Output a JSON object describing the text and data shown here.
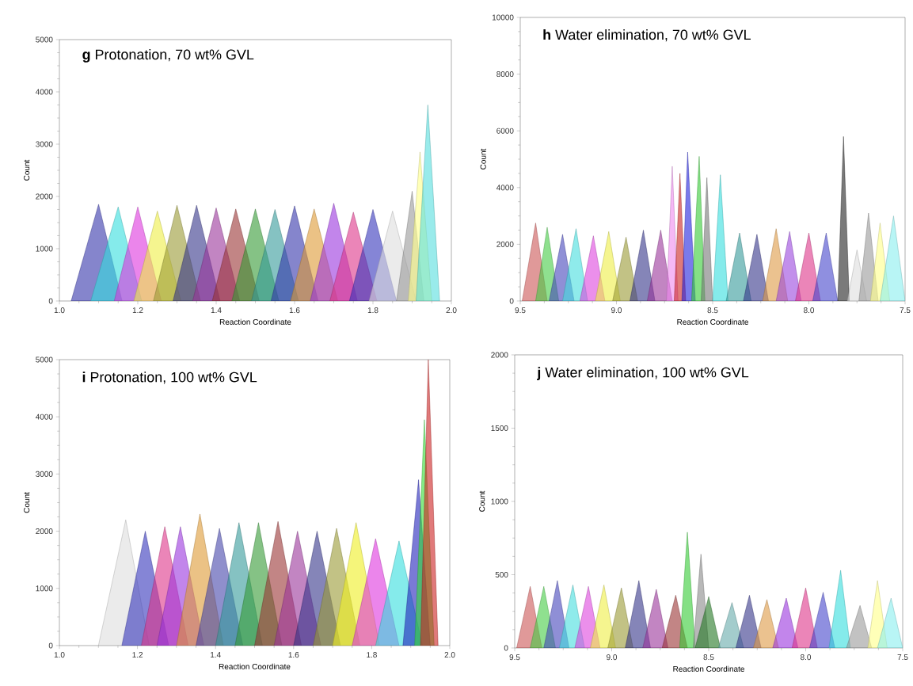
{
  "chart_data": [
    {
      "type": "area",
      "title": "**g** Protonation, 70 wt% GVL",
      "xlabel": "Reaction Coordinate",
      "ylabel": "Count",
      "xlim": [
        1.0,
        2.0
      ],
      "ylim": [
        0,
        5000
      ],
      "xticks": [
        {
          "value": 1.0,
          "label": "1.0"
        },
        {
          "value": 1.2,
          "label": "1.2"
        },
        {
          "value": 1.4,
          "label": "1.4"
        },
        {
          "value": 1.6,
          "label": "1.6"
        },
        {
          "value": 1.8,
          "label": "1.8"
        },
        {
          "value": 2.0,
          "label": "2.0"
        }
      ],
      "yticks": [
        0,
        1000,
        2000,
        3000,
        4000,
        5000
      ],
      "series": [
        {
          "color": "#3333aa",
          "x": [
            1.03,
            1.1,
            1.16
          ],
          "values": [
            0,
            1850,
            0
          ]
        },
        {
          "color": "#33dddd",
          "x": [
            1.08,
            1.15,
            1.21
          ],
          "values": [
            0,
            1800,
            0
          ]
        },
        {
          "color": "#dd33dd",
          "x": [
            1.14,
            1.2,
            1.26
          ],
          "values": [
            0,
            1800,
            0
          ]
        },
        {
          "color": "#eeee44",
          "x": [
            1.19,
            1.25,
            1.31
          ],
          "values": [
            0,
            1720,
            0
          ]
        },
        {
          "color": "#999933",
          "x": [
            1.24,
            1.3,
            1.36
          ],
          "values": [
            0,
            1830,
            0
          ]
        },
        {
          "color": "#333388",
          "x": [
            1.29,
            1.35,
            1.41
          ],
          "values": [
            0,
            1830,
            0
          ]
        },
        {
          "color": "#993399",
          "x": [
            1.34,
            1.4,
            1.46
          ],
          "values": [
            0,
            1780,
            0
          ]
        },
        {
          "color": "#993333",
          "x": [
            1.39,
            1.45,
            1.51
          ],
          "values": [
            0,
            1760,
            0
          ]
        },
        {
          "color": "#339933",
          "x": [
            1.44,
            1.5,
            1.56
          ],
          "values": [
            0,
            1760,
            0
          ]
        },
        {
          "color": "#339999",
          "x": [
            1.49,
            1.55,
            1.61
          ],
          "values": [
            0,
            1750,
            0
          ]
        },
        {
          "color": "#3333aa",
          "x": [
            1.54,
            1.6,
            1.66
          ],
          "values": [
            0,
            1820,
            0
          ]
        },
        {
          "color": "#dd9933",
          "x": [
            1.59,
            1.65,
            1.71
          ],
          "values": [
            0,
            1760,
            0
          ]
        },
        {
          "color": "#9933dd",
          "x": [
            1.64,
            1.7,
            1.76
          ],
          "values": [
            0,
            1870,
            0
          ]
        },
        {
          "color": "#dd3388",
          "x": [
            1.69,
            1.75,
            1.81
          ],
          "values": [
            0,
            1700,
            0
          ]
        },
        {
          "color": "#3333bb",
          "x": [
            1.74,
            1.8,
            1.86
          ],
          "values": [
            0,
            1750,
            0
          ]
        },
        {
          "color": "#dddddd",
          "x": [
            1.79,
            1.85,
            1.91
          ],
          "values": [
            0,
            1720,
            0
          ]
        },
        {
          "color": "#999999",
          "x": [
            1.86,
            1.9,
            1.93
          ],
          "values": [
            0,
            2100,
            0
          ]
        },
        {
          "color": "#ffff88",
          "x": [
            1.89,
            1.92,
            1.95
          ],
          "values": [
            0,
            2850,
            0
          ]
        },
        {
          "color": "#55dddd",
          "x": [
            1.91,
            1.94,
            1.97
          ],
          "values": [
            0,
            3750,
            0
          ]
        }
      ]
    },
    {
      "type": "area",
      "title": "**h** Water elimination, 70 wt% GVL",
      "xlabel": "Reaction Coordinate",
      "ylabel": "Count",
      "xlim": [
        9.5,
        7.5
      ],
      "ylim": [
        0,
        10000
      ],
      "xticks": [
        {
          "value": 9.5,
          "label": "9.5"
        },
        {
          "value": 9.0,
          "label": "9.0"
        },
        {
          "value": 8.5,
          "label": "8.5"
        },
        {
          "value": 8.0,
          "label": "8.0"
        },
        {
          "value": 7.5,
          "label": "7.5"
        }
      ],
      "yticks": [
        0,
        2000,
        4000,
        6000,
        8000,
        10000
      ],
      "series": [
        {
          "color": "#cc5555",
          "x": [
            9.49,
            9.42,
            9.36
          ],
          "values": [
            0,
            2750,
            0
          ]
        },
        {
          "color": "#44cc44",
          "x": [
            9.42,
            9.36,
            9.3
          ],
          "values": [
            0,
            2600,
            0
          ]
        },
        {
          "color": "#4444bb",
          "x": [
            9.35,
            9.28,
            9.22
          ],
          "values": [
            0,
            2350,
            0
          ]
        },
        {
          "color": "#44dddd",
          "x": [
            9.28,
            9.21,
            9.15
          ],
          "values": [
            0,
            2550,
            0
          ]
        },
        {
          "color": "#dd44dd",
          "x": [
            9.19,
            9.12,
            9.06
          ],
          "values": [
            0,
            2300,
            0
          ]
        },
        {
          "color": "#eeee44",
          "x": [
            9.11,
            9.04,
            8.98
          ],
          "values": [
            0,
            2450,
            0
          ]
        },
        {
          "color": "#999933",
          "x": [
            9.02,
            8.95,
            8.89
          ],
          "values": [
            0,
            2250,
            0
          ]
        },
        {
          "color": "#333388",
          "x": [
            8.93,
            8.86,
            8.8
          ],
          "values": [
            0,
            2500,
            0
          ]
        },
        {
          "color": "#993399",
          "x": [
            8.84,
            8.77,
            8.71
          ],
          "values": [
            0,
            2500,
            0
          ]
        },
        {
          "color": "#ee88ee",
          "x": [
            8.74,
            8.71,
            8.68
          ],
          "values": [
            0,
            4750,
            0
          ]
        },
        {
          "color": "#cc2222",
          "x": [
            8.7,
            8.67,
            8.64
          ],
          "values": [
            0,
            4500,
            0
          ]
        },
        {
          "color": "#2222dd",
          "x": [
            8.66,
            8.63,
            8.59
          ],
          "values": [
            0,
            5250,
            0
          ]
        },
        {
          "color": "#33cc33",
          "x": [
            8.61,
            8.57,
            8.54
          ],
          "values": [
            0,
            5100,
            0
          ]
        },
        {
          "color": "#777777",
          "x": [
            8.56,
            8.53,
            8.5
          ],
          "values": [
            0,
            4350,
            0
          ]
        },
        {
          "color": "#33dddd",
          "x": [
            8.5,
            8.46,
            8.42
          ],
          "values": [
            0,
            4450,
            0
          ]
        },
        {
          "color": "#339999",
          "x": [
            8.43,
            8.36,
            8.3
          ],
          "values": [
            0,
            2400,
            0
          ]
        },
        {
          "color": "#333388",
          "x": [
            8.34,
            8.27,
            8.21
          ],
          "values": [
            0,
            2350,
            0
          ]
        },
        {
          "color": "#dd9944",
          "x": [
            8.24,
            8.17,
            8.11
          ],
          "values": [
            0,
            2550,
            0
          ]
        },
        {
          "color": "#9944dd",
          "x": [
            8.17,
            8.1,
            8.04
          ],
          "values": [
            0,
            2450,
            0
          ]
        },
        {
          "color": "#dd3388",
          "x": [
            8.07,
            8.0,
            7.94
          ],
          "values": [
            0,
            2400,
            0
          ]
        },
        {
          "color": "#4444cc",
          "x": [
            7.98,
            7.91,
            7.85
          ],
          "values": [
            0,
            2400,
            0
          ]
        },
        {
          "color": "#222222",
          "x": [
            7.85,
            7.82,
            7.79
          ],
          "values": [
            0,
            5800,
            0
          ]
        },
        {
          "color": "#dddddd",
          "x": [
            7.8,
            7.75,
            7.7
          ],
          "values": [
            0,
            1800,
            0
          ]
        },
        {
          "color": "#999999",
          "x": [
            7.74,
            7.69,
            7.64
          ],
          "values": [
            0,
            3100,
            0
          ]
        },
        {
          "color": "#ffff88",
          "x": [
            7.68,
            7.63,
            7.58
          ],
          "values": [
            0,
            2750,
            0
          ]
        },
        {
          "color": "#88eeee",
          "x": [
            7.63,
            7.56,
            7.5
          ],
          "values": [
            0,
            3000,
            0
          ]
        }
      ]
    },
    {
      "type": "area",
      "title": "**i** Protonation, 100 wt% GVL",
      "xlabel": "Reaction Coordinate",
      "ylabel": "Count",
      "xlim": [
        1.0,
        2.0
      ],
      "ylim": [
        0,
        5000
      ],
      "xticks": [
        {
          "value": 1.0,
          "label": "1.0"
        },
        {
          "value": 1.2,
          "label": "1.2"
        },
        {
          "value": 1.4,
          "label": "1.4"
        },
        {
          "value": 1.6,
          "label": "1.6"
        },
        {
          "value": 1.8,
          "label": "1.8"
        },
        {
          "value": 2.0,
          "label": "2.0"
        }
      ],
      "yticks": [
        0,
        1000,
        2000,
        3000,
        4000,
        5000
      ],
      "series": [
        {
          "color": "#dddddd",
          "x": [
            1.1,
            1.17,
            1.23
          ],
          "values": [
            0,
            2200,
            0
          ]
        },
        {
          "color": "#3333bb",
          "x": [
            1.16,
            1.22,
            1.28
          ],
          "values": [
            0,
            2000,
            0
          ]
        },
        {
          "color": "#dd3388",
          "x": [
            1.21,
            1.27,
            1.33
          ],
          "values": [
            0,
            2080,
            0
          ]
        },
        {
          "color": "#9933dd",
          "x": [
            1.25,
            1.31,
            1.37
          ],
          "values": [
            0,
            2080,
            0
          ]
        },
        {
          "color": "#dd9933",
          "x": [
            1.3,
            1.36,
            1.42
          ],
          "values": [
            0,
            2300,
            0
          ]
        },
        {
          "color": "#4444aa",
          "x": [
            1.35,
            1.41,
            1.47
          ],
          "values": [
            0,
            2050,
            0
          ]
        },
        {
          "color": "#339999",
          "x": [
            1.4,
            1.46,
            1.52
          ],
          "values": [
            0,
            2150,
            0
          ]
        },
        {
          "color": "#339933",
          "x": [
            1.45,
            1.51,
            1.57
          ],
          "values": [
            0,
            2150,
            0
          ]
        },
        {
          "color": "#993333",
          "x": [
            1.5,
            1.56,
            1.62
          ],
          "values": [
            0,
            2170,
            0
          ]
        },
        {
          "color": "#993399",
          "x": [
            1.55,
            1.61,
            1.67
          ],
          "values": [
            0,
            2000,
            0
          ]
        },
        {
          "color": "#333388",
          "x": [
            1.6,
            1.66,
            1.72
          ],
          "values": [
            0,
            2000,
            0
          ]
        },
        {
          "color": "#999933",
          "x": [
            1.65,
            1.71,
            1.77
          ],
          "values": [
            0,
            2050,
            0
          ]
        },
        {
          "color": "#eeee22",
          "x": [
            1.7,
            1.76,
            1.82
          ],
          "values": [
            0,
            2150,
            0
          ]
        },
        {
          "color": "#dd33dd",
          "x": [
            1.75,
            1.81,
            1.87
          ],
          "values": [
            0,
            1870,
            0
          ]
        },
        {
          "color": "#33dddd",
          "x": [
            1.81,
            1.87,
            1.93
          ],
          "values": [
            0,
            1830,
            0
          ]
        },
        {
          "color": "#2222bb",
          "x": [
            1.88,
            1.92,
            1.95
          ],
          "values": [
            0,
            2900,
            0
          ]
        },
        {
          "color": "#33dd33",
          "x": [
            1.91,
            1.935,
            1.96
          ],
          "values": [
            0,
            3950,
            0
          ]
        },
        {
          "color": "#cc2222",
          "x": [
            1.925,
            1.945,
            1.97
          ],
          "values": [
            0,
            5000,
            0
          ]
        }
      ]
    },
    {
      "type": "area",
      "title": "**j** Water elimination, 100 wt% GVL",
      "xlabel": "Reaction Coordinate",
      "ylabel": "Count",
      "xlim": [
        9.5,
        7.5
      ],
      "ylim": [
        0,
        2000
      ],
      "xticks": [
        {
          "value": 9.5,
          "label": "9.5"
        },
        {
          "value": 9.0,
          "label": "9.0"
        },
        {
          "value": 8.5,
          "label": "8.5"
        },
        {
          "value": 8.0,
          "label": "8.0"
        },
        {
          "value": 7.5,
          "label": "7.5"
        }
      ],
      "yticks": [
        0,
        500,
        1000,
        1500,
        2000
      ],
      "series": [
        {
          "color": "#cc5555",
          "x": [
            9.49,
            9.42,
            9.36
          ],
          "values": [
            0,
            420,
            0
          ]
        },
        {
          "color": "#44cc44",
          "x": [
            9.42,
            9.35,
            9.29
          ],
          "values": [
            0,
            420,
            0
          ]
        },
        {
          "color": "#4444bb",
          "x": [
            9.35,
            9.28,
            9.22
          ],
          "values": [
            0,
            460,
            0
          ]
        },
        {
          "color": "#44dddd",
          "x": [
            9.27,
            9.2,
            9.14
          ],
          "values": [
            0,
            430,
            0
          ]
        },
        {
          "color": "#dd44dd",
          "x": [
            9.19,
            9.12,
            9.06
          ],
          "values": [
            0,
            420,
            0
          ]
        },
        {
          "color": "#eeee44",
          "x": [
            9.11,
            9.04,
            8.98
          ],
          "values": [
            0,
            430,
            0
          ]
        },
        {
          "color": "#999933",
          "x": [
            9.02,
            8.95,
            8.89
          ],
          "values": [
            0,
            410,
            0
          ]
        },
        {
          "color": "#333388",
          "x": [
            8.93,
            8.86,
            8.8
          ],
          "values": [
            0,
            460,
            0
          ]
        },
        {
          "color": "#993399",
          "x": [
            8.84,
            8.77,
            8.71
          ],
          "values": [
            0,
            400,
            0
          ]
        },
        {
          "color": "#993333",
          "x": [
            8.74,
            8.67,
            8.61
          ],
          "values": [
            0,
            360,
            0
          ]
        },
        {
          "color": "#33cc33",
          "x": [
            8.65,
            8.61,
            8.57
          ],
          "values": [
            0,
            790,
            0
          ]
        },
        {
          "color": "#888888",
          "x": [
            8.58,
            8.54,
            8.5
          ],
          "values": [
            0,
            640,
            0
          ]
        },
        {
          "color": "#227722",
          "x": [
            8.57,
            8.5,
            8.44
          ],
          "values": [
            0,
            350,
            0
          ]
        },
        {
          "color": "#66aaaa",
          "x": [
            8.45,
            8.38,
            8.32
          ],
          "values": [
            0,
            310,
            0
          ]
        },
        {
          "color": "#333388",
          "x": [
            8.36,
            8.29,
            8.23
          ],
          "values": [
            0,
            360,
            0
          ]
        },
        {
          "color": "#dd9944",
          "x": [
            8.27,
            8.2,
            8.14
          ],
          "values": [
            0,
            330,
            0
          ]
        },
        {
          "color": "#9933dd",
          "x": [
            8.17,
            8.1,
            8.04
          ],
          "values": [
            0,
            340,
            0
          ]
        },
        {
          "color": "#dd3388",
          "x": [
            8.07,
            8.0,
            7.94
          ],
          "values": [
            0,
            410,
            0
          ]
        },
        {
          "color": "#4444cc",
          "x": [
            7.98,
            7.91,
            7.85
          ],
          "values": [
            0,
            380,
            0
          ]
        },
        {
          "color": "#33dddd",
          "x": [
            7.88,
            7.82,
            7.77
          ],
          "values": [
            0,
            530,
            0
          ]
        },
        {
          "color": "#999999",
          "x": [
            7.79,
            7.72,
            7.66
          ],
          "values": [
            0,
            290,
            0
          ]
        },
        {
          "color": "#ffff88",
          "x": [
            7.68,
            7.63,
            7.58
          ],
          "values": [
            0,
            460,
            0
          ]
        },
        {
          "color": "#88eeee",
          "x": [
            7.63,
            7.56,
            7.5
          ],
          "values": [
            0,
            340,
            0
          ]
        }
      ]
    }
  ]
}
